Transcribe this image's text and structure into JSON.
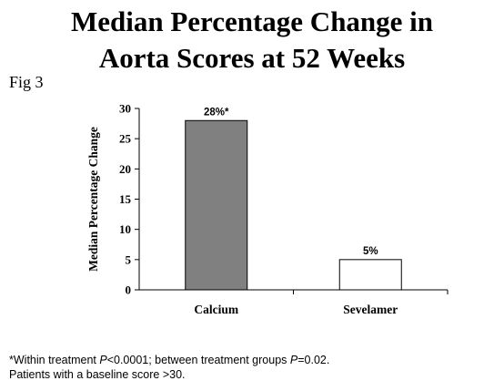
{
  "header": {
    "title_line1": "Median Percentage Change in",
    "title_line2": "Aorta Scores at 52 Weeks",
    "fig_label": "Fig 3"
  },
  "chart_data": {
    "type": "bar",
    "categories": [
      "Calcium",
      "Sevelamer"
    ],
    "values": [
      28,
      5
    ],
    "data_labels": [
      "28%*",
      "5%"
    ],
    "bar_colors": [
      "#808080",
      "#ffffff"
    ],
    "ylabel": "Median Percentage Change",
    "xlabel": "",
    "ylim": [
      0,
      30
    ],
    "yticks": [
      0,
      5,
      10,
      15,
      20,
      25,
      30
    ],
    "grid": false,
    "legend": "none"
  },
  "footnote": {
    "line1_part1": "*Within treatment ",
    "line1_p1": "P",
    "line1_part2": "<0.0001; between treatment groups ",
    "line1_p2": "P",
    "line1_part3": "=0.02.",
    "line2": "Patients with a baseline score >30."
  }
}
